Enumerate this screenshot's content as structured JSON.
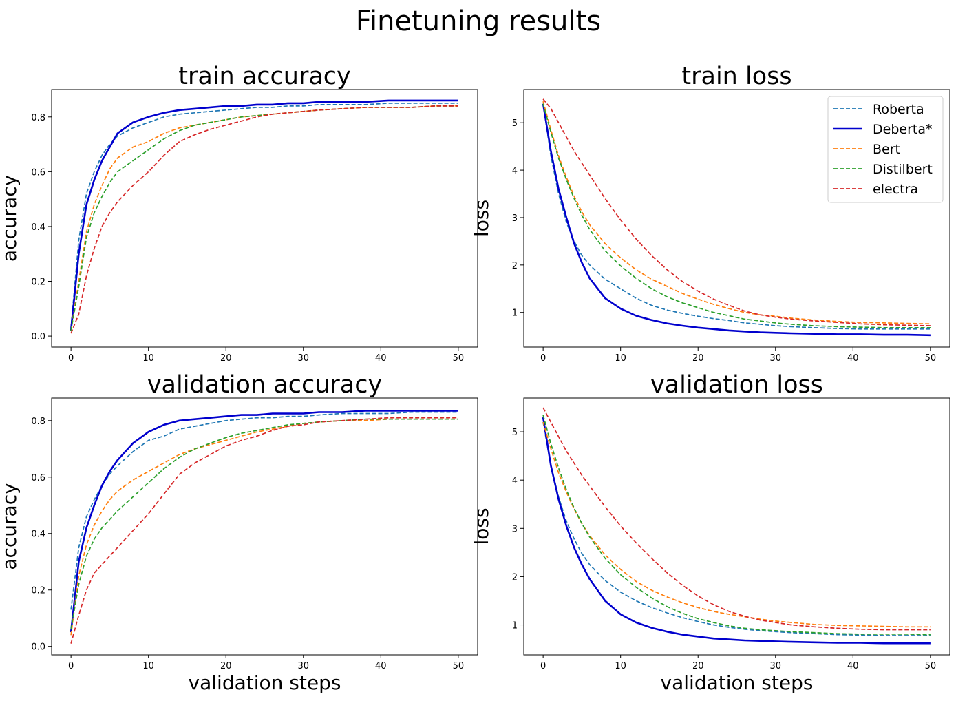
{
  "figure": {
    "title": "Finetuning results"
  },
  "colors": {
    "Roberta": "#1f77b4",
    "Deberta*": "#0000cd",
    "Bert": "#ff7f0e",
    "Distilbert": "#2ca02c",
    "electra": "#d62728"
  },
  "legend": {
    "placement": "top-right of train loss panel",
    "entries": [
      {
        "label": "Roberta",
        "style": "dashed"
      },
      {
        "label": "Deberta*",
        "style": "solid"
      },
      {
        "label": "Bert",
        "style": "dashed"
      },
      {
        "label": "Distilbert",
        "style": "dashed"
      },
      {
        "label": "electra",
        "style": "dashed"
      }
    ]
  },
  "chart_data": [
    {
      "type": "line",
      "title": "train accuracy",
      "xlabel": "",
      "ylabel": "accuracy",
      "xlim": [
        -2.5,
        52.5
      ],
      "ylim": [
        -0.04,
        0.9
      ],
      "xticks": [
        0,
        10,
        20,
        30,
        40,
        50
      ],
      "yticks": [
        0.0,
        0.2,
        0.4,
        0.6,
        0.8
      ],
      "grid": false,
      "x": [
        0,
        1,
        2,
        3,
        4,
        5,
        6,
        8,
        10,
        12,
        14,
        16,
        18,
        20,
        22,
        24,
        26,
        28,
        30,
        32,
        35,
        38,
        41,
        44,
        47,
        50
      ],
      "series": [
        {
          "name": "Roberta",
          "values": [
            0.03,
            0.35,
            0.52,
            0.6,
            0.66,
            0.7,
            0.73,
            0.76,
            0.78,
            0.8,
            0.81,
            0.815,
            0.82,
            0.825,
            0.83,
            0.835,
            0.835,
            0.84,
            0.84,
            0.845,
            0.845,
            0.845,
            0.85,
            0.85,
            0.85,
            0.85
          ]
        },
        {
          "name": "Deberta*",
          "values": [
            0.02,
            0.3,
            0.48,
            0.57,
            0.64,
            0.69,
            0.74,
            0.78,
            0.8,
            0.815,
            0.825,
            0.83,
            0.835,
            0.84,
            0.84,
            0.845,
            0.845,
            0.85,
            0.85,
            0.855,
            0.855,
            0.855,
            0.86,
            0.86,
            0.86,
            0.86
          ]
        },
        {
          "name": "Bert",
          "values": [
            0.02,
            0.2,
            0.38,
            0.48,
            0.55,
            0.61,
            0.65,
            0.69,
            0.71,
            0.74,
            0.76,
            0.77,
            0.78,
            0.79,
            0.8,
            0.805,
            0.81,
            0.815,
            0.82,
            0.825,
            0.83,
            0.835,
            0.835,
            0.835,
            0.84,
            0.84
          ]
        },
        {
          "name": "Distilbert",
          "values": [
            0.02,
            0.18,
            0.36,
            0.45,
            0.51,
            0.56,
            0.6,
            0.64,
            0.68,
            0.72,
            0.75,
            0.77,
            0.78,
            0.79,
            0.8,
            0.805,
            0.81,
            0.815,
            0.82,
            0.825,
            0.83,
            0.835,
            0.835,
            0.835,
            0.84,
            0.84
          ]
        },
        {
          "name": "electra",
          "values": [
            0.01,
            0.08,
            0.22,
            0.32,
            0.4,
            0.45,
            0.49,
            0.55,
            0.6,
            0.66,
            0.71,
            0.735,
            0.755,
            0.77,
            0.785,
            0.8,
            0.81,
            0.815,
            0.82,
            0.825,
            0.83,
            0.835,
            0.835,
            0.835,
            0.84,
            0.84
          ]
        }
      ]
    },
    {
      "type": "line",
      "title": "train loss",
      "xlabel": "",
      "ylabel": "loss",
      "xlim": [
        -2.5,
        52.5
      ],
      "ylim": [
        0.27,
        5.7
      ],
      "xticks": [
        0,
        10,
        20,
        30,
        40,
        50
      ],
      "yticks": [
        1,
        2,
        3,
        4,
        5
      ],
      "grid": false,
      "x": [
        0,
        1,
        2,
        3,
        4,
        5,
        6,
        8,
        10,
        12,
        14,
        16,
        18,
        20,
        22,
        24,
        26,
        28,
        30,
        32,
        35,
        38,
        41,
        44,
        47,
        50
      ],
      "series": [
        {
          "name": "Roberta",
          "values": [
            5.4,
            4.3,
            3.5,
            2.9,
            2.5,
            2.2,
            2.0,
            1.7,
            1.5,
            1.3,
            1.15,
            1.05,
            0.98,
            0.92,
            0.87,
            0.83,
            0.78,
            0.75,
            0.72,
            0.7,
            0.68,
            0.66,
            0.65,
            0.65,
            0.65,
            0.65
          ]
        },
        {
          "name": "Deberta*",
          "values": [
            5.4,
            4.4,
            3.6,
            3.0,
            2.45,
            2.05,
            1.72,
            1.3,
            1.08,
            0.93,
            0.84,
            0.77,
            0.72,
            0.68,
            0.65,
            0.62,
            0.6,
            0.58,
            0.57,
            0.56,
            0.55,
            0.54,
            0.54,
            0.53,
            0.53,
            0.52
          ]
        },
        {
          "name": "Bert",
          "values": [
            5.45,
            4.85,
            4.3,
            3.85,
            3.45,
            3.12,
            2.85,
            2.45,
            2.15,
            1.9,
            1.7,
            1.55,
            1.4,
            1.28,
            1.17,
            1.08,
            1.0,
            0.95,
            0.92,
            0.88,
            0.84,
            0.81,
            0.79,
            0.78,
            0.77,
            0.76
          ]
        },
        {
          "name": "Distilbert",
          "values": [
            5.4,
            4.8,
            4.25,
            3.8,
            3.4,
            3.05,
            2.75,
            2.3,
            1.98,
            1.72,
            1.5,
            1.33,
            1.2,
            1.1,
            1.0,
            0.93,
            0.86,
            0.82,
            0.78,
            0.75,
            0.72,
            0.7,
            0.69,
            0.68,
            0.68,
            0.68
          ]
        },
        {
          "name": "electra",
          "values": [
            5.5,
            5.3,
            5.0,
            4.7,
            4.4,
            4.15,
            3.9,
            3.4,
            2.95,
            2.55,
            2.2,
            1.9,
            1.65,
            1.45,
            1.28,
            1.15,
            1.03,
            0.95,
            0.9,
            0.86,
            0.82,
            0.79,
            0.76,
            0.74,
            0.73,
            0.72
          ]
        }
      ]
    },
    {
      "type": "line",
      "title": "validation accuracy",
      "xlabel": "validation steps",
      "ylabel": "accuracy",
      "xlim": [
        -2.5,
        52.5
      ],
      "ylim": [
        -0.03,
        0.88
      ],
      "xticks": [
        0,
        10,
        20,
        30,
        40,
        50
      ],
      "yticks": [
        0.0,
        0.2,
        0.4,
        0.6,
        0.8
      ],
      "grid": false,
      "x": [
        0,
        1,
        2,
        3,
        4,
        5,
        6,
        8,
        10,
        12,
        14,
        16,
        18,
        20,
        22,
        24,
        26,
        28,
        30,
        32,
        35,
        38,
        41,
        44,
        47,
        50
      ],
      "series": [
        {
          "name": "Roberta",
          "values": [
            0.13,
            0.35,
            0.46,
            0.52,
            0.57,
            0.61,
            0.64,
            0.69,
            0.73,
            0.745,
            0.77,
            0.78,
            0.79,
            0.8,
            0.805,
            0.81,
            0.81,
            0.815,
            0.815,
            0.82,
            0.825,
            0.825,
            0.825,
            0.83,
            0.83,
            0.83
          ]
        },
        {
          "name": "Deberta*",
          "values": [
            0.05,
            0.3,
            0.42,
            0.5,
            0.57,
            0.62,
            0.66,
            0.72,
            0.76,
            0.785,
            0.8,
            0.805,
            0.81,
            0.815,
            0.82,
            0.82,
            0.825,
            0.825,
            0.825,
            0.83,
            0.83,
            0.835,
            0.835,
            0.835,
            0.835,
            0.835
          ]
        },
        {
          "name": "Bert",
          "values": [
            0.04,
            0.25,
            0.36,
            0.43,
            0.48,
            0.52,
            0.55,
            0.59,
            0.62,
            0.65,
            0.68,
            0.7,
            0.715,
            0.73,
            0.745,
            0.76,
            0.77,
            0.78,
            0.79,
            0.795,
            0.8,
            0.8,
            0.805,
            0.805,
            0.805,
            0.805
          ]
        },
        {
          "name": "Distilbert",
          "values": [
            0.06,
            0.22,
            0.32,
            0.38,
            0.42,
            0.45,
            0.48,
            0.53,
            0.58,
            0.63,
            0.67,
            0.7,
            0.72,
            0.74,
            0.755,
            0.765,
            0.775,
            0.785,
            0.79,
            0.795,
            0.8,
            0.805,
            0.805,
            0.805,
            0.805,
            0.805
          ]
        },
        {
          "name": "electra",
          "values": [
            0.01,
            0.11,
            0.2,
            0.26,
            0.29,
            0.32,
            0.35,
            0.41,
            0.47,
            0.54,
            0.61,
            0.65,
            0.68,
            0.71,
            0.73,
            0.745,
            0.765,
            0.78,
            0.785,
            0.795,
            0.8,
            0.805,
            0.81,
            0.81,
            0.81,
            0.81
          ]
        }
      ]
    },
    {
      "type": "line",
      "title": "validation loss",
      "xlabel": "validation steps",
      "ylabel": "loss",
      "xlim": [
        -2.5,
        52.5
      ],
      "ylim": [
        0.38,
        5.7
      ],
      "xticks": [
        0,
        10,
        20,
        30,
        40,
        50
      ],
      "yticks": [
        1,
        2,
        3,
        4,
        5
      ],
      "grid": false,
      "x": [
        0,
        1,
        2,
        3,
        4,
        5,
        6,
        8,
        10,
        12,
        14,
        16,
        18,
        20,
        22,
        24,
        26,
        28,
        30,
        32,
        35,
        38,
        41,
        44,
        47,
        50
      ],
      "series": [
        {
          "name": "Roberta",
          "values": [
            5.2,
            4.3,
            3.65,
            3.15,
            2.78,
            2.48,
            2.25,
            1.92,
            1.68,
            1.5,
            1.36,
            1.25,
            1.15,
            1.07,
            1.0,
            0.95,
            0.91,
            0.88,
            0.86,
            0.84,
            0.82,
            0.8,
            0.79,
            0.78,
            0.78,
            0.78
          ]
        },
        {
          "name": "Deberta*",
          "values": [
            5.3,
            4.3,
            3.6,
            3.05,
            2.6,
            2.25,
            1.95,
            1.5,
            1.22,
            1.05,
            0.94,
            0.86,
            0.8,
            0.76,
            0.72,
            0.7,
            0.68,
            0.67,
            0.66,
            0.65,
            0.64,
            0.63,
            0.63,
            0.62,
            0.62,
            0.62
          ]
        },
        {
          "name": "Bert",
          "values": [
            5.2,
            4.65,
            4.15,
            3.75,
            3.4,
            3.1,
            2.85,
            2.45,
            2.15,
            1.9,
            1.72,
            1.58,
            1.46,
            1.36,
            1.28,
            1.22,
            1.17,
            1.12,
            1.08,
            1.05,
            1.01,
            0.99,
            0.98,
            0.97,
            0.96,
            0.96
          ]
        },
        {
          "name": "Distilbert",
          "values": [
            5.35,
            4.75,
            4.25,
            3.8,
            3.42,
            3.1,
            2.82,
            2.38,
            2.04,
            1.78,
            1.56,
            1.38,
            1.24,
            1.13,
            1.05,
            0.98,
            0.93,
            0.9,
            0.88,
            0.86,
            0.84,
            0.82,
            0.81,
            0.81,
            0.81,
            0.8
          ]
        },
        {
          "name": "electra",
          "values": [
            5.5,
            5.2,
            4.9,
            4.6,
            4.35,
            4.1,
            3.88,
            3.45,
            3.05,
            2.7,
            2.38,
            2.08,
            1.82,
            1.6,
            1.42,
            1.28,
            1.18,
            1.1,
            1.05,
            1.0,
            0.96,
            0.93,
            0.91,
            0.9,
            0.9,
            0.9
          ]
        }
      ]
    }
  ]
}
